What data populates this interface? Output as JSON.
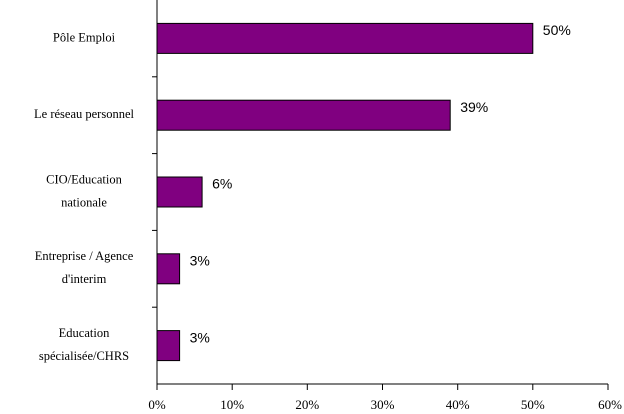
{
  "colors": {
    "bar_fill": "#800080",
    "bar_stroke": "#000000",
    "axis": "#000000",
    "background": "#ffffff"
  },
  "chart_data": {
    "type": "bar",
    "orientation": "horizontal",
    "categories": [
      [
        "Pôle Emploi"
      ],
      [
        "Le réseau personnel"
      ],
      [
        "CIO/Education",
        "nationale"
      ],
      [
        "Entreprise / Agence",
        "d'interim"
      ],
      [
        "Education",
        "spécialisée/CHRS"
      ]
    ],
    "values": [
      50,
      39,
      6,
      3,
      3
    ],
    "value_labels": [
      "50%",
      "39%",
      "6%",
      "3%",
      "3%"
    ],
    "x_ticks": [
      0,
      10,
      20,
      30,
      40,
      50,
      60
    ],
    "x_tick_labels": [
      "0%",
      "10%",
      "20%",
      "30%",
      "40%",
      "50%",
      "60%"
    ],
    "xlim": [
      0,
      60
    ],
    "grid": false,
    "legend": "none"
  }
}
